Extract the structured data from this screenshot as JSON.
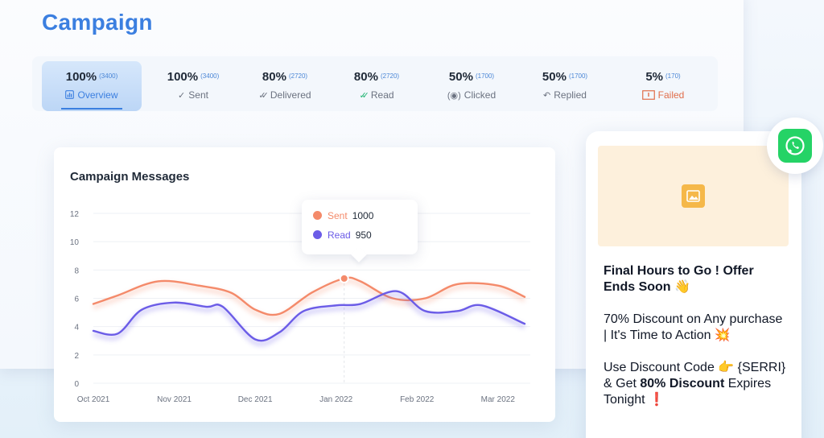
{
  "page": {
    "title": "Campaign"
  },
  "stats": [
    {
      "pct": "100%",
      "count": "(3400)",
      "label": "Overview",
      "icon": "bar-chart-icon",
      "active": true
    },
    {
      "pct": "100%",
      "count": "(3400)",
      "label": "Sent",
      "icon": "check-icon"
    },
    {
      "pct": "80%",
      "count": "(2720)",
      "label": "Delivered",
      "icon": "double-check-icon"
    },
    {
      "pct": "80%",
      "count": "(2720)",
      "label": "Read",
      "icon": "double-check-green-icon"
    },
    {
      "pct": "50%",
      "count": "(1700)",
      "label": "Clicked",
      "icon": "cursor-click-icon"
    },
    {
      "pct": "50%",
      "count": "(1700)",
      "label": "Replied",
      "icon": "reply-icon"
    },
    {
      "pct": "5%",
      "count": "(170)",
      "label": "Failed",
      "icon": "failed-icon",
      "failed": true
    }
  ],
  "chart_data": {
    "type": "line",
    "title": "Campaign Messages",
    "x": [
      "Oct 2021",
      "Nov 2021",
      "Dec 2021",
      "Jan 2022",
      "Feb 2022",
      "Mar 2022"
    ],
    "ylim": [
      0,
      12
    ],
    "yticks": [
      0,
      2,
      4,
      6,
      8,
      10,
      12
    ],
    "grid": true,
    "series": [
      {
        "name": "Sent",
        "color": "#f48a6a",
        "points": [
          [
            0,
            5.6
          ],
          [
            0.3,
            6.2
          ],
          [
            0.8,
            7.2
          ],
          [
            1.3,
            6.9
          ],
          [
            1.7,
            6.4
          ],
          [
            2,
            5.2
          ],
          [
            2.3,
            4.9
          ],
          [
            2.7,
            6.4
          ],
          [
            3.1,
            7.4
          ],
          [
            3.3,
            7.2
          ],
          [
            3.7,
            6.0
          ],
          [
            4.1,
            6.0
          ],
          [
            4.5,
            7.0
          ],
          [
            5,
            6.9
          ],
          [
            5.33,
            6.1
          ]
        ]
      },
      {
        "name": "Read",
        "color": "#6b5ce7",
        "points": [
          [
            0,
            3.7
          ],
          [
            0.3,
            3.5
          ],
          [
            0.6,
            5.2
          ],
          [
            1,
            5.7
          ],
          [
            1.4,
            5.4
          ],
          [
            1.6,
            5.4
          ],
          [
            2,
            3.1
          ],
          [
            2.3,
            3.6
          ],
          [
            2.6,
            5.1
          ],
          [
            3,
            5.5
          ],
          [
            3.3,
            5.6
          ],
          [
            3.75,
            6.5
          ],
          [
            4.1,
            5.1
          ],
          [
            4.5,
            5.1
          ],
          [
            4.8,
            5.5
          ],
          [
            5.33,
            4.2
          ]
        ]
      }
    ],
    "tooltip": {
      "x_index": 3.1,
      "items": [
        {
          "name": "Sent",
          "value": "1000"
        },
        {
          "name": "Read",
          "value": "950"
        }
      ]
    }
  },
  "preview": {
    "title": "Final Hours to Go ! Offer Ends Soon 👋",
    "p1": "70% Discount on Any purchase | It's Time to Action 💥",
    "p2_a": "Use Discount Code 👉 {SERRI} & Get ",
    "p2_b": "80% Discount",
    "p2_c": " Expires Tonight ❗"
  },
  "colors": {
    "accent": "#3b7fe0",
    "sent": "#f48a6a",
    "read": "#6b5ce7",
    "whatsapp": "#25d366",
    "failed": "#e06d4a"
  }
}
